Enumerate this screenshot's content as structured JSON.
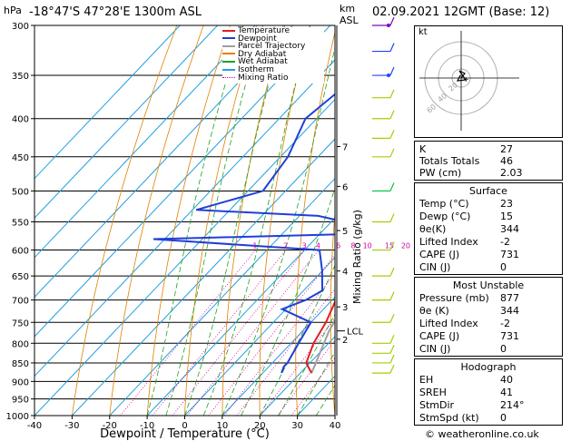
{
  "header": {
    "location": "-18°47'S 47°28'E 1300m ASL",
    "datetime": "02.09.2021 12GMT (Base: 12)",
    "y_unit": "hPa",
    "km_unit": "km\nASL",
    "km_label_top": "km",
    "km_label_bottom": "ASL",
    "credit": "© weatheronline.co.uk"
  },
  "colors": {
    "temperature": "#e02020",
    "dewpoint": "#1f3fd9",
    "parcel": "#a0a0a0",
    "dry_adiabat": "#e08000",
    "wet_adiabat": "#20a020",
    "isotherm": "#20a0e0",
    "mixing_ratio": "#d000a0",
    "wind_low": "#a0d000",
    "wind_mid": "#00c040",
    "wind_high": "#2040ff",
    "wind_top": "#8000c0"
  },
  "chart_data": {
    "type": "line",
    "title": "",
    "xlabel": "Dewpoint / Temperature (°C)",
    "ylabel": "hPa",
    "ylabel_right": "Mixing Ratio (g/kg)",
    "xlim": [
      -40,
      40
    ],
    "ylim": [
      1000,
      300
    ],
    "x_ticks": [
      -40,
      -30,
      -20,
      -10,
      0,
      10,
      20,
      30,
      40
    ],
    "y_ticks": [
      300,
      350,
      400,
      450,
      500,
      550,
      600,
      650,
      700,
      750,
      800,
      850,
      900,
      950,
      1000
    ],
    "km_ticks": [
      {
        "p": 436,
        "label": "7"
      },
      {
        "p": 493,
        "label": "6"
      },
      {
        "p": 565,
        "label": "5"
      },
      {
        "p": 640,
        "label": "4"
      },
      {
        "p": 715,
        "label": "3"
      },
      {
        "p": 790,
        "label": "2"
      }
    ],
    "lcl": {
      "p": 770,
      "label": "LCL"
    },
    "mixing_ratio_labels": [
      "1",
      "2",
      "3",
      "4",
      "6",
      "8",
      "10",
      "15",
      "20",
      "25"
    ],
    "legend": [
      "Temperature",
      "Dewpoint",
      "Parcel Trajectory",
      "Dry Adiabat",
      "Wet Adiabat",
      "Isotherm",
      "Mixing Ratio"
    ],
    "series": [
      {
        "name": "Temperature",
        "points": [
          [
            877,
            23
          ],
          [
            850,
            19
          ],
          [
            800,
            16
          ],
          [
            750,
            14
          ],
          [
            700,
            11
          ],
          [
            650,
            6
          ],
          [
            600,
            1
          ],
          [
            550,
            -2
          ],
          [
            500,
            -7
          ],
          [
            450,
            -12
          ],
          [
            400,
            -19
          ],
          [
            350,
            -28
          ],
          [
            300,
            -37
          ]
        ]
      },
      {
        "name": "Dewpoint",
        "points": [
          [
            877,
            15
          ],
          [
            860,
            14
          ],
          [
            850,
            14
          ],
          [
            800,
            12
          ],
          [
            750,
            10
          ],
          [
            720,
            -1
          ],
          [
            700,
            3
          ],
          [
            680,
            5
          ],
          [
            640,
            0
          ],
          [
            600,
            -6
          ],
          [
            580,
            -53
          ],
          [
            570,
            5
          ],
          [
            560,
            2
          ],
          [
            540,
            -15
          ],
          [
            530,
            -49
          ],
          [
            500,
            -36
          ],
          [
            450,
            -38
          ],
          [
            400,
            -43
          ],
          [
            350,
            -40
          ],
          [
            300,
            -35
          ]
        ]
      },
      {
        "name": "Parcel Trajectory",
        "points": [
          [
            877,
            23
          ],
          [
            770,
            17
          ],
          [
            700,
            14
          ],
          [
            600,
            5
          ],
          [
            500,
            -4
          ],
          [
            400,
            -15
          ],
          [
            300,
            -30
          ]
        ]
      }
    ]
  },
  "hodograph": {
    "label": "kt",
    "ring_labels": [
      "60",
      "40",
      "20"
    ]
  },
  "indices": [
    {
      "k": "K",
      "v": "27"
    },
    {
      "k": "Totals Totals",
      "v": "46"
    },
    {
      "k": "PW (cm)",
      "v": "2.03"
    }
  ],
  "surface": {
    "title": "Surface",
    "rows": [
      {
        "k": "Temp (°C)",
        "v": "23"
      },
      {
        "k": "Dewp (°C)",
        "v": "15"
      },
      {
        "k": "θe(K)",
        "v": "344"
      },
      {
        "k": "Lifted Index",
        "v": "-2"
      },
      {
        "k": "CAPE (J)",
        "v": "731"
      },
      {
        "k": "CIN (J)",
        "v": "0"
      }
    ]
  },
  "most_unstable": {
    "title": "Most Unstable",
    "rows": [
      {
        "k": "Pressure (mb)",
        "v": "877"
      },
      {
        "k": "θe (K)",
        "v": "344"
      },
      {
        "k": "Lifted Index",
        "v": "-2"
      },
      {
        "k": "CAPE (J)",
        "v": "731"
      },
      {
        "k": "CIN (J)",
        "v": "0"
      }
    ]
  },
  "hodograph_table": {
    "title": "Hodograph",
    "rows": [
      {
        "k": "EH",
        "v": "40"
      },
      {
        "k": "SREH",
        "v": "41"
      },
      {
        "k": "StmDir",
        "v": "214°"
      },
      {
        "k": "StmSpd (kt)",
        "v": "0"
      }
    ]
  }
}
